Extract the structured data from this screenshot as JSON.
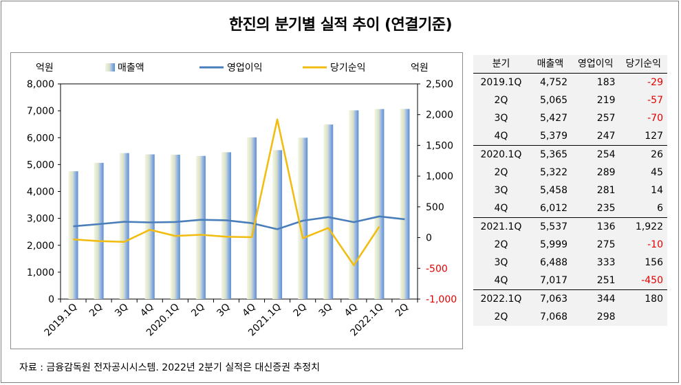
{
  "title": "한진의 분기별 실적 추이 (연결기준)",
  "source": "자료 : 금융감독원 전자공시시스템. 2022년 2분기 실적은 대신증권 추정치",
  "chart_data": {
    "type": "bar",
    "categories": [
      "2019.1Q",
      "2Q",
      "3Q",
      "4Q",
      "2020.1Q",
      "2Q",
      "3Q",
      "4Q",
      "2021.1Q",
      "2Q",
      "3Q",
      "4Q",
      "2022.1Q",
      "2Q"
    ],
    "left_unit": "억원",
    "right_unit": "억원",
    "ylim_left": [
      0,
      8000
    ],
    "ylim_right": [
      -1000,
      2500
    ],
    "yticks_left": [
      "0",
      "1,000",
      "2,000",
      "3,000",
      "4,000",
      "5,000",
      "6,000",
      "7,000",
      "8,000"
    ],
    "yticks_right": [
      "-1,000",
      "-500",
      "0",
      "500",
      "1,000",
      "1,500",
      "2,000",
      "2,500"
    ],
    "legend_placement": "top",
    "series": [
      {
        "name": "매출액",
        "type": "bar",
        "axis": "left",
        "values": [
          4752,
          5065,
          5427,
          5379,
          5365,
          5322,
          5458,
          6012,
          5537,
          5999,
          6488,
          7017,
          7063,
          7068
        ]
      },
      {
        "name": "영업이익",
        "type": "line",
        "axis": "right",
        "color": "#4a7ebb",
        "values": [
          183,
          219,
          257,
          247,
          254,
          289,
          281,
          235,
          136,
          275,
          333,
          251,
          344,
          298
        ]
      },
      {
        "name": "당기순익",
        "type": "line",
        "axis": "right",
        "color": "#f2bd12",
        "values": [
          -29,
          -57,
          -70,
          127,
          26,
          45,
          14,
          6,
          1922,
          -10,
          156,
          -450,
          180,
          null
        ]
      }
    ]
  },
  "table": {
    "headers": [
      "분기",
      "매출액",
      "영업이익",
      "당기순익"
    ],
    "rows": [
      {
        "q": "2019.1Q",
        "rev": "4,752",
        "op": "183",
        "net": "-29"
      },
      {
        "q": "2Q",
        "rev": "5,065",
        "op": "219",
        "net": "-57"
      },
      {
        "q": "3Q",
        "rev": "5,427",
        "op": "257",
        "net": "-70"
      },
      {
        "q": "4Q",
        "rev": "5,379",
        "op": "247",
        "net": "127"
      },
      {
        "q": "2020.1Q",
        "rev": "5,365",
        "op": "254",
        "net": "26"
      },
      {
        "q": "2Q",
        "rev": "5,322",
        "op": "289",
        "net": "45"
      },
      {
        "q": "3Q",
        "rev": "5,458",
        "op": "281",
        "net": "14"
      },
      {
        "q": "4Q",
        "rev": "6,012",
        "op": "235",
        "net": "6"
      },
      {
        "q": "2021.1Q",
        "rev": "5,537",
        "op": "136",
        "net": "1,922"
      },
      {
        "q": "2Q",
        "rev": "5,999",
        "op": "275",
        "net": "-10"
      },
      {
        "q": "3Q",
        "rev": "6,488",
        "op": "333",
        "net": "156"
      },
      {
        "q": "4Q",
        "rev": "7,017",
        "op": "251",
        "net": "-450"
      },
      {
        "q": "2022.1Q",
        "rev": "7,063",
        "op": "344",
        "net": "180"
      },
      {
        "q": "2Q",
        "rev": "7,068",
        "op": "298",
        "net": ""
      }
    ]
  }
}
